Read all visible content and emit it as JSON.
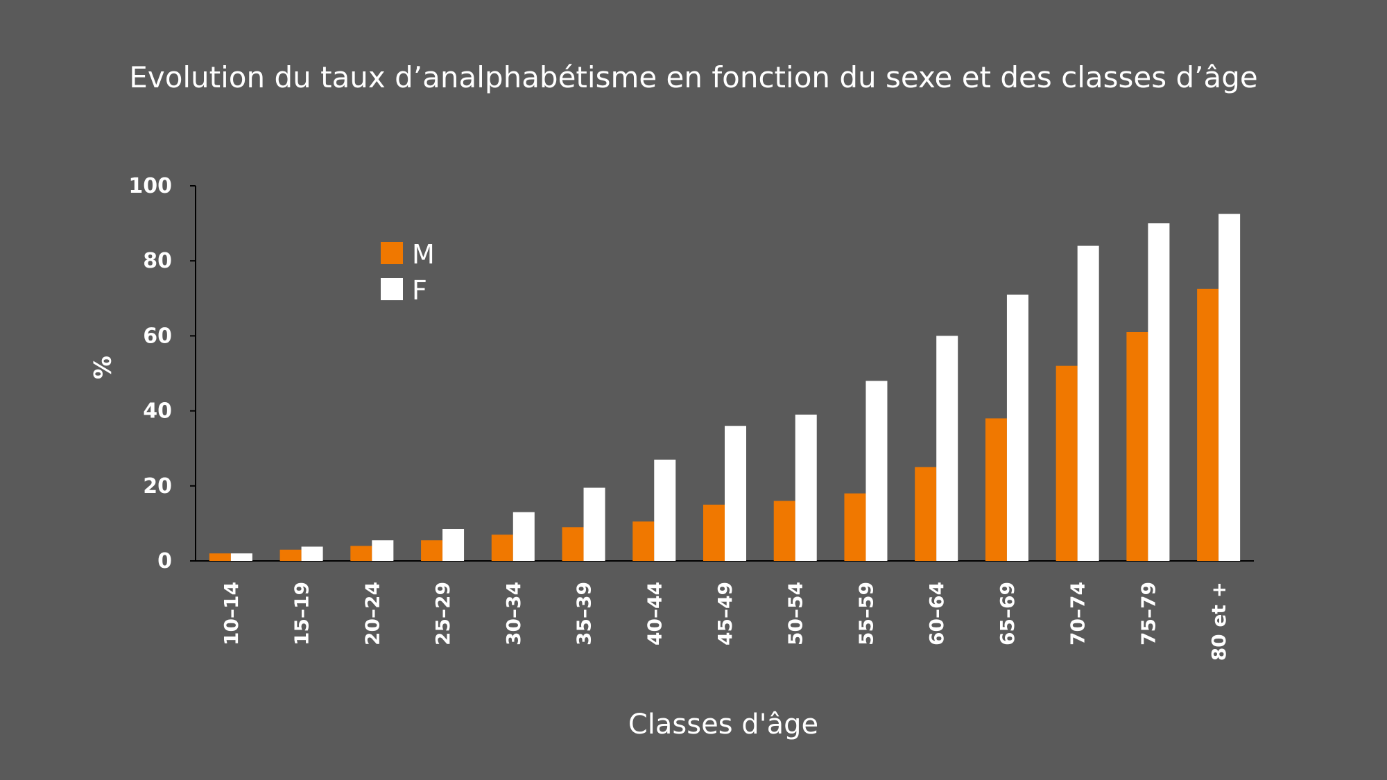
{
  "chart_data": {
    "type": "bar",
    "title": "Evolution du taux d’analphabétisme en fonction du sexe et des classes d’âge",
    "xlabel": "Classes d'âge",
    "ylabel": "%",
    "ylim": [
      0,
      100
    ],
    "yticks": [
      "0",
      "20",
      "40",
      "60",
      "80",
      "100"
    ],
    "categories": [
      "10–14",
      "15–19",
      "20–24",
      "25–29",
      "30–34",
      "35–39",
      "40–44",
      "45–49",
      "50–54",
      "55–59",
      "60–64",
      "65–69",
      "70–74",
      "75–79",
      "80 et +"
    ],
    "series": [
      {
        "name": "M",
        "color": "#f07800",
        "values": [
          2,
          3,
          4,
          5.5,
          7,
          9,
          10.5,
          15,
          16,
          18,
          25,
          38,
          52,
          61,
          72.5
        ]
      },
      {
        "name": "F",
        "color": "#ffffff",
        "values": [
          2,
          3.8,
          5.5,
          8.5,
          13,
          19.5,
          27,
          36,
          39,
          48,
          60,
          71,
          84,
          90,
          92.5
        ]
      }
    ],
    "grid": false,
    "legend_position": "top-left"
  }
}
